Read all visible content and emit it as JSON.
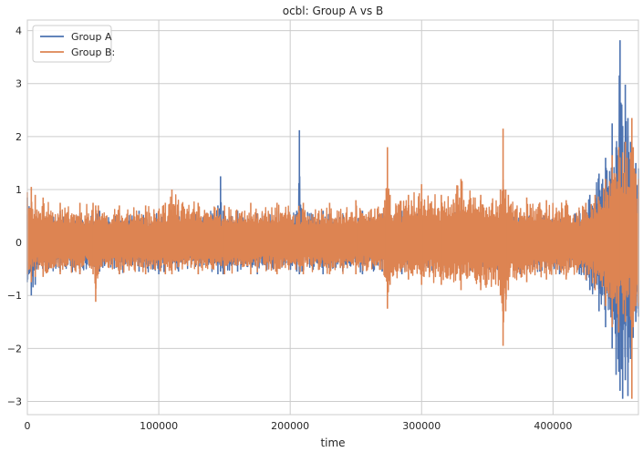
{
  "chart_data": {
    "type": "line",
    "title": "ocbl: Group A vs B",
    "xlabel": "time",
    "ylabel": "",
    "xlim": [
      0,
      465000
    ],
    "ylim": [
      -3.25,
      4.2
    ],
    "x_ticks": [
      0,
      100000,
      200000,
      300000,
      400000
    ],
    "x_tick_labels": [
      "0",
      "100000",
      "200000",
      "300000",
      "400000"
    ],
    "y_ticks": [
      -3,
      -2,
      -1,
      0,
      1,
      2,
      3,
      4
    ],
    "y_tick_labels": [
      "−3",
      "−2",
      "−1",
      "0",
      "1",
      "2",
      "3",
      "4"
    ],
    "grid": true,
    "legend_position": "top-left",
    "series": [
      {
        "name": "Group A",
        "color": "#4c72b0",
        "x": [
          0,
          3000,
          6000,
          12000,
          25000,
          40000,
          55000,
          70000,
          85000,
          100000,
          115000,
          130000,
          145000,
          147000,
          149000,
          160000,
          175000,
          190000,
          205000,
          207000,
          209000,
          225000,
          240000,
          255000,
          270000,
          285000,
          300000,
          315000,
          330000,
          345000,
          360000,
          375000,
          390000,
          405000,
          420000,
          428000,
          435000,
          440000,
          445000,
          448000,
          451000,
          453000,
          455000,
          457000,
          459000,
          461000,
          463000,
          465000
        ],
        "upper": [
          0.85,
          0.75,
          0.6,
          0.55,
          0.6,
          0.55,
          0.6,
          0.55,
          0.6,
          0.55,
          0.6,
          0.6,
          0.7,
          1.25,
          0.6,
          0.6,
          0.55,
          0.6,
          0.6,
          2.12,
          0.6,
          0.6,
          0.55,
          0.6,
          0.55,
          0.6,
          0.55,
          0.6,
          0.6,
          0.55,
          0.6,
          0.55,
          0.6,
          0.55,
          0.6,
          0.9,
          1.3,
          1.6,
          2.25,
          1.8,
          3.82,
          2.2,
          2.98,
          2.35,
          1.9,
          1.8,
          1.5,
          1.4
        ],
        "lower": [
          -0.75,
          -1.0,
          -0.8,
          -0.6,
          -0.55,
          -0.6,
          -0.55,
          -0.6,
          -0.55,
          -0.6,
          -0.55,
          -0.6,
          -0.6,
          -0.55,
          -0.6,
          -0.55,
          -0.6,
          -0.55,
          -0.55,
          -0.6,
          -0.55,
          -0.6,
          -0.55,
          -0.6,
          -0.55,
          -0.6,
          -0.55,
          -0.6,
          -0.55,
          -0.6,
          -0.55,
          -0.6,
          -0.55,
          -0.6,
          -0.6,
          -0.9,
          -1.3,
          -1.6,
          -2.0,
          -2.5,
          -2.8,
          -2.95,
          -2.6,
          -2.9,
          -2.2,
          -1.8,
          -1.5,
          -1.4
        ]
      },
      {
        "name": "Group B:",
        "color": "#dd8452",
        "x": [
          0,
          3000,
          6000,
          12000,
          25000,
          40000,
          50000,
          52000,
          54000,
          70000,
          90000,
          105000,
          110000,
          130000,
          150000,
          170000,
          190000,
          210000,
          230000,
          250000,
          272000,
          274000,
          276000,
          290000,
          300000,
          315000,
          330000,
          345000,
          360000,
          362000,
          364000,
          366000,
          380000,
          395000,
          410000,
          425000,
          432000,
          440000,
          445000,
          450000,
          455000,
          459000,
          460000,
          461000,
          462000,
          463000,
          465000
        ],
        "upper": [
          0.95,
          1.05,
          0.9,
          0.85,
          0.75,
          0.75,
          0.75,
          0.7,
          0.7,
          0.7,
          0.7,
          0.75,
          1.0,
          0.75,
          0.7,
          0.75,
          0.75,
          0.75,
          0.75,
          0.8,
          0.8,
          1.8,
          0.9,
          0.9,
          1.1,
          0.9,
          1.2,
          0.9,
          1.0,
          2.15,
          1.0,
          0.9,
          0.85,
          0.8,
          0.8,
          0.75,
          0.9,
          1.2,
          1.65,
          1.8,
          1.9,
          1.7,
          2.35,
          1.8,
          1.4,
          1.3,
          1.2
        ],
        "lower": [
          -0.6,
          -0.75,
          -0.65,
          -0.65,
          -0.6,
          -0.6,
          -0.6,
          -1.12,
          -0.6,
          -0.6,
          -0.6,
          -0.6,
          -0.6,
          -0.6,
          -0.6,
          -0.6,
          -0.6,
          -0.6,
          -0.6,
          -0.6,
          -0.65,
          -1.25,
          -0.8,
          -0.7,
          -0.8,
          -0.8,
          -0.9,
          -0.9,
          -1.0,
          -1.95,
          -1.3,
          -0.9,
          -0.75,
          -0.7,
          -0.7,
          -0.7,
          -0.9,
          -1.2,
          -1.6,
          -1.7,
          -1.5,
          -1.4,
          -2.95,
          -1.6,
          -1.3,
          -1.2,
          -1.2
        ]
      }
    ]
  }
}
